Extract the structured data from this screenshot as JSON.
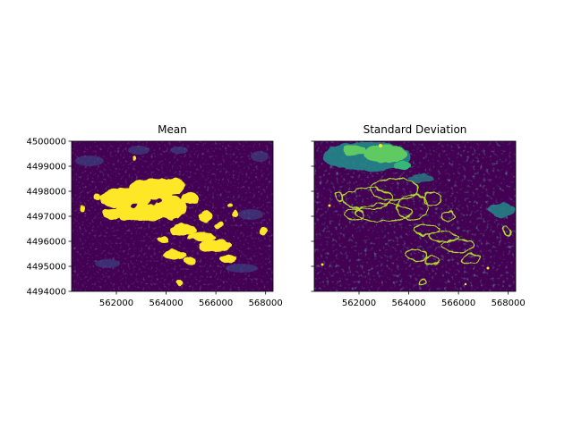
{
  "chart_data": [
    {
      "type": "heatmap",
      "title": "Mean",
      "colormap": "viridis",
      "xlim": [
        560200,
        568300
      ],
      "ylim": [
        4494000,
        4500000
      ],
      "xticks": [
        562000,
        564000,
        566000,
        568000
      ],
      "xtick_labels": [
        "562000",
        "564000",
        "566000",
        "568000"
      ],
      "yticks": [
        4494000,
        4495000,
        4496000,
        4497000,
        4498000,
        4499000,
        4500000
      ],
      "ytick_labels": [
        "4494000",
        "4495000",
        "4496000",
        "4497000",
        "4498000",
        "4499000",
        "4500000"
      ],
      "show_ytick_labels": true,
      "features": [
        {
          "kind": "high-mean cluster",
          "color": "#fde725",
          "extent_x": [
            561000,
            566800
          ],
          "extent_y": [
            4494900,
            4498400
          ]
        }
      ]
    },
    {
      "type": "heatmap",
      "title": "Standard Deviation",
      "colormap": "viridis",
      "xlim": [
        560200,
        568300
      ],
      "ylim": [
        4494000,
        4500000
      ],
      "xticks": [
        562000,
        564000,
        566000,
        568000
      ],
      "xtick_labels": [
        "562000",
        "564000",
        "566000",
        "568000"
      ],
      "yticks": [
        4494000,
        4495000,
        4496000,
        4497000,
        4498000,
        4499000,
        4500000
      ],
      "ytick_labels": [
        "",
        "",
        "",
        "",
        "",
        "",
        ""
      ],
      "show_ytick_labels": false,
      "features": [
        {
          "kind": "high-variance edges",
          "color": "#b5de2b",
          "extent_x": [
            561000,
            566800
          ],
          "extent_y": [
            4494900,
            4498400
          ]
        },
        {
          "kind": "elevated-variance region",
          "color": "#35b779",
          "extent_x": [
            560700,
            564300
          ],
          "extent_y": [
            4498200,
            4500000
          ]
        }
      ]
    }
  ],
  "colors": {
    "background_low": "#440154",
    "low_mid": "#3b528b",
    "mid": "#21918c",
    "high_mid": "#5ec962",
    "high": "#fde725"
  }
}
